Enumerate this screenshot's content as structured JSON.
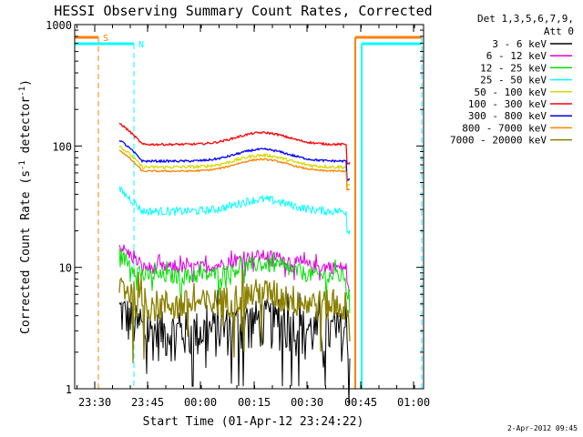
{
  "chart_data": {
    "type": "line",
    "title": "HESSI Observing Summary Count Rates, Corrected",
    "xlabel": "Start Time (01-Apr-12 23:24:22)",
    "ylabel_main": "Corrected Count Rate (s",
    "ylabel_sup1": "-1",
    "ylabel_mid": " detector",
    "ylabel_sup2": "-1",
    "ylabel_end": ")",
    "yscale": "log",
    "ylim": [
      1,
      1000
    ],
    "y_ticks": [
      {
        "value": 1,
        "label": "1"
      },
      {
        "value": 10,
        "label": "10"
      },
      {
        "value": 100,
        "label": "100"
      },
      {
        "value": 1000,
        "label": "1000"
      }
    ],
    "x_ticks": [
      "23:30",
      "23:45",
      "00:00",
      "00:15",
      "00:30",
      "00:45",
      "01:00"
    ],
    "xlim_label": [
      "23:24:22",
      "01:05:00"
    ],
    "legend_header": [
      "Det 1,3,5,6,7,9,",
      "Att 0"
    ],
    "legend_placement": "right",
    "series": [
      {
        "name": "3 - 6 keV",
        "color": "#000000",
        "base": 3,
        "noise": 0.45,
        "spiky": true
      },
      {
        "name": "6 - 12 keV",
        "color": "#e000e0",
        "base": 10,
        "noise": 0.12,
        "spiky": true
      },
      {
        "name": "12 - 25 keV",
        "color": "#00e000",
        "base": 8.5,
        "noise": 0.15,
        "spiky": true
      },
      {
        "name": "25 - 50 keV",
        "color": "#00ffff",
        "base": 29,
        "noise": 0.08,
        "spiky": false
      },
      {
        "name": "50 - 100 keV",
        "color": "#d8d800",
        "base": 67,
        "noise": 0.03,
        "spiky": false
      },
      {
        "name": "100 - 300 keV",
        "color": "#ff0000",
        "base": 103,
        "noise": 0.02,
        "spiky": false
      },
      {
        "name": "300 - 800 keV",
        "color": "#0000ff",
        "base": 75,
        "noise": 0.02,
        "spiky": false
      },
      {
        "name": "800 - 7000 keV",
        "color": "#ff8000",
        "base": 62,
        "noise": 0.015,
        "spiky": false
      },
      {
        "name": "7000 - 20000 keV",
        "color": "#8b8000",
        "base": 5,
        "noise": 0.3,
        "spiky": true
      }
    ],
    "flag_bars": [
      {
        "label": "S",
        "color": "#ff8000",
        "value": 800
      },
      {
        "label": "N",
        "color": "#00ffff",
        "value": 650
      }
    ],
    "timestamp": "2-Apr-2012 09:45"
  }
}
